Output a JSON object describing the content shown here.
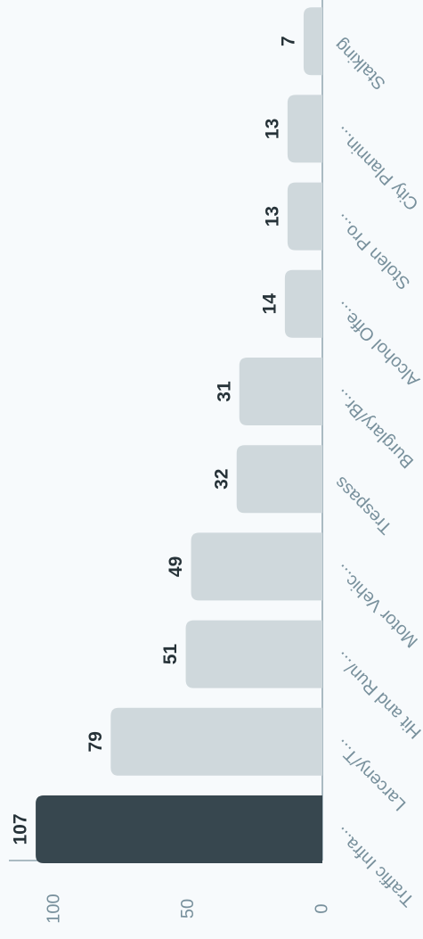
{
  "chart_data": {
    "type": "bar",
    "categories": [
      "Traffic Infra...",
      "Larceny/T...",
      "Hit and Run/...",
      "Motor Vehic...",
      "Trespass",
      "Burglary/Br...",
      "Alcohol Offe...",
      "Stolen Pro...",
      "City Plannin...",
      "Stalking"
    ],
    "values": [
      107,
      79,
      51,
      49,
      32,
      31,
      14,
      13,
      13,
      7
    ],
    "colors": [
      "#37474f",
      "#cfd8dc",
      "#cfd8dc",
      "#cfd8dc",
      "#cfd8dc",
      "#cfd8dc",
      "#cfd8dc",
      "#cfd8dc",
      "#cfd8dc",
      "#cfd8dc"
    ],
    "ylim": [
      0,
      117
    ],
    "yticks": [
      0,
      50,
      100
    ],
    "grid": false
  }
}
